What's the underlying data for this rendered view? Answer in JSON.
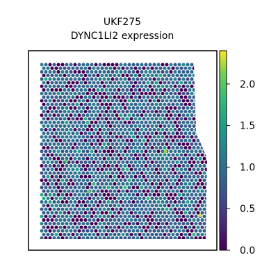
{
  "chart_data": {
    "type": "scatter",
    "subtype": "spatial-hex-spots",
    "title": [
      "UKF275",
      "DYNC1LI2 expression"
    ],
    "xlabel": "",
    "ylabel": "",
    "colormap": "viridis",
    "colorbar": {
      "min": 0.0,
      "max": 2.4,
      "ticks": [
        0.0,
        0.5,
        1.0,
        1.5,
        2.0
      ],
      "tick_labels": [
        "0.0",
        "0.5",
        "1.0",
        "1.5",
        "2.0"
      ]
    },
    "value_distribution": {
      "fraction_zero": 0.22,
      "typical_range": [
        0.6,
        1.4
      ],
      "max_observed": 2.4
    },
    "highlight_spots": [
      {
        "value": 2.4,
        "region": "right edge, upper-middle"
      },
      {
        "value": 2.3,
        "region": "right edge, lower"
      },
      {
        "value": 2.2,
        "region": "center-right"
      },
      {
        "value": 2.1,
        "region": "lower-center"
      },
      {
        "value": 2.0,
        "region": "left-center"
      }
    ],
    "grid": false,
    "legend": "colorbar-right"
  }
}
